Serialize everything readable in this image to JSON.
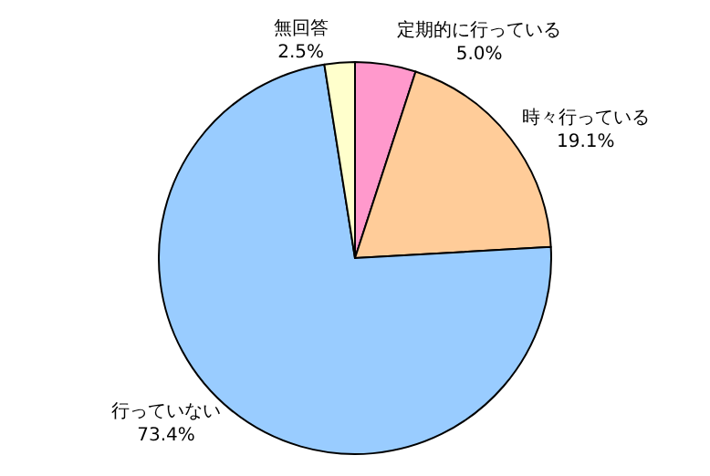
{
  "chart_data": {
    "type": "pie",
    "categories": [
      "定期的に行っている",
      "時々行っている",
      "行っていない",
      "無回答"
    ],
    "values": [
      5.0,
      19.1,
      73.4,
      2.5
    ],
    "value_labels": [
      "5.0%",
      "19.1%",
      "73.4%",
      "2.5%"
    ],
    "colors": [
      "#ff99cc",
      "#ffcc99",
      "#99ccff",
      "#ffffcc"
    ],
    "legend": false
  }
}
